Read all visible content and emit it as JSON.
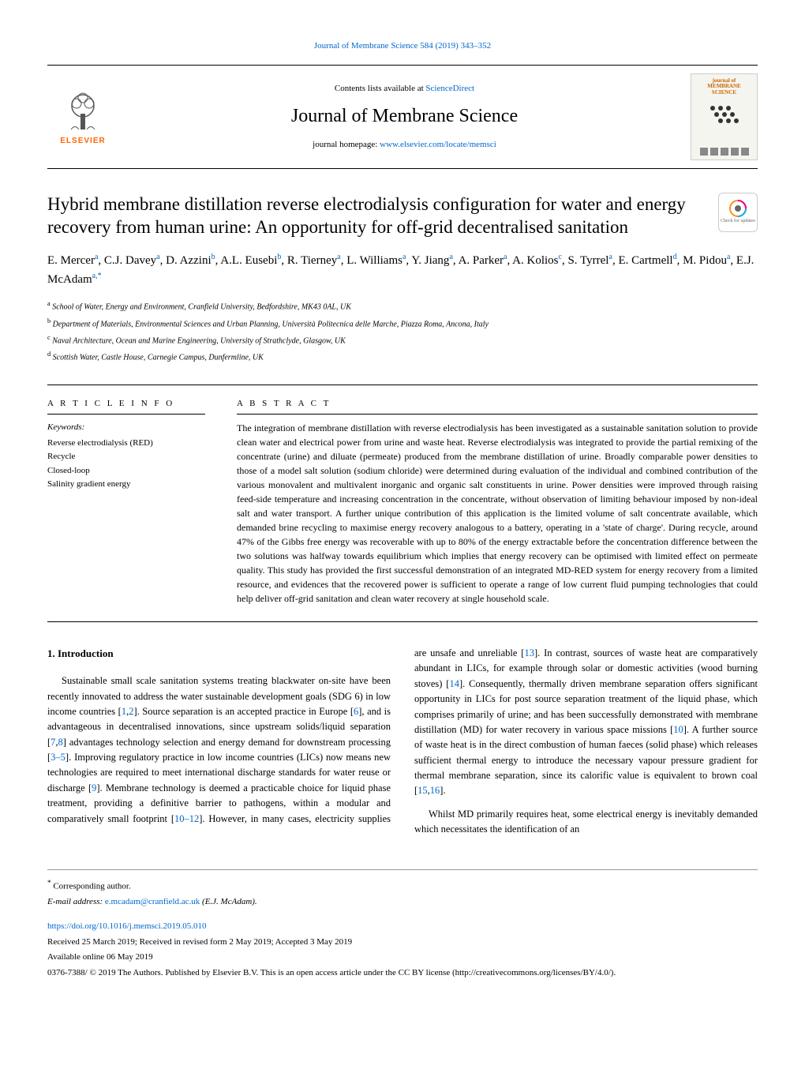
{
  "header": {
    "top_link_journal": "Journal of Membrane Science 584 (2019) 343–352",
    "contents_prefix": "Contents lists available at ",
    "contents_link": "ScienceDirect",
    "journal_name": "Journal of Membrane Science",
    "homepage_prefix": "journal homepage: ",
    "homepage_url": "www.elsevier.com/locate/memsci",
    "elsevier_label": "ELSEVIER",
    "cover_title_1": "journal of",
    "cover_title_2": "MEMBRANE",
    "cover_title_3": "SCIENCE",
    "check_updates": "Check for updates"
  },
  "article": {
    "title": "Hybrid membrane distillation reverse electrodialysis configuration for water and energy recovery from human urine: An opportunity for off-grid decentralised sanitation",
    "authors_html": "E. Mercer<sup>a</sup>, C.J. Davey<sup>a</sup>, D. Azzini<sup>b</sup>, A.L. Eusebi<sup>b</sup>, R. Tierney<sup>a</sup>, L. Williams<sup>a</sup>, Y. Jiang<sup>a</sup>, A. Parker<sup>a</sup>, A. Kolios<sup>c</sup>, S. Tyrrel<sup>a</sup>, E. Cartmell<sup>d</sup>, M. Pidou<sup>a</sup>, E.J. McAdam<sup>a,*</sup>",
    "affiliations": [
      {
        "label": "a",
        "text": "School of Water, Energy and Environment, Cranfield University, Bedfordshire, MK43 0AL, UK"
      },
      {
        "label": "b",
        "text": "Department of Materials, Environmental Sciences and Urban Planning, Università Politecnica delle Marche, Piazza Roma, Ancona, Italy"
      },
      {
        "label": "c",
        "text": "Naval Architecture, Ocean and Marine Engineering, University of Strathclyde, Glasgow, UK"
      },
      {
        "label": "d",
        "text": "Scottish Water, Castle House, Carnegie Campus, Dunfermline, UK"
      }
    ]
  },
  "info": {
    "heading": "A R T I C L E  I N F O",
    "keywords_label": "Keywords:",
    "keywords": [
      "Reverse electrodialysis (RED)",
      "Recycle",
      "Closed-loop",
      "Salinity gradient energy"
    ]
  },
  "abstract": {
    "heading": "A B S T R A C T",
    "text": "The integration of membrane distillation with reverse electrodialysis has been investigated as a sustainable sanitation solution to provide clean water and electrical power from urine and waste heat. Reverse electrodialysis was integrated to provide the partial remixing of the concentrate (urine) and diluate (permeate) produced from the membrane distillation of urine. Broadly comparable power densities to those of a model salt solution (sodium chloride) were determined during evaluation of the individual and combined contribution of the various monovalent and multivalent inorganic and organic salt constituents in urine. Power densities were improved through raising feed-side temperature and increasing concentration in the concentrate, without observation of limiting behaviour imposed by non-ideal salt and water transport. A further unique contribution of this application is the limited volume of salt concentrate available, which demanded brine recycling to maximise energy recovery analogous to a battery, operating in a 'state of charge'. During recycle, around 47% of the Gibbs free energy was recoverable with up to 80% of the energy extractable before the concentration difference between the two solutions was halfway towards equilibrium which implies that energy recovery can be optimised with limited effect on permeate quality. This study has provided the first successful demonstration of an integrated MD-RED system for energy recovery from a limited resource, and evidences that the recovered power is sufficient to operate a range of low current fluid pumping technologies that could help deliver off-grid sanitation and clean water recovery at single household scale."
  },
  "section1": {
    "heading": "1. Introduction",
    "para1_pre": "Sustainable small scale sanitation systems treating blackwater on-site have been recently innovated to address the water sustainable development goals (SDG 6) in low income countries [",
    "para1_ref1": "1",
    "para1_mid1": ",",
    "para1_ref2": "2",
    "para1_mid2": "]. Source separation is an accepted practice in Europe [",
    "para1_ref3": "6",
    "para1_mid3": "], and is advantageous in decentralised innovations, since upstream solids/liquid separation [",
    "para1_ref4": "7",
    "para1_mid4": ",",
    "para1_ref5": "8",
    "para1_mid5": "] advantages technology selection and energy demand for downstream processing [",
    "para1_ref6": "3–5",
    "para1_mid6": "]. Improving regulatory practice in low income countries (LICs) now means new technologies are required to meet international discharge standards for water reuse or discharge [",
    "para1_ref7": "9",
    "para1_mid7": "]. Membrane technology is deemed a practicable choice for liquid phase treatment, providing a definitive barrier to pathogens, within a modular and comparatively small footprint [",
    "para1_ref8": "10–12",
    "para1_mid8": "]. However, in many cases, electricity supplies are unsafe and unreliable [",
    "para1_ref9": "13",
    "para1_mid9": "]. In contrast, sources of waste heat are comparatively abundant in LICs, for example through solar or domestic activities (wood burning stoves) [",
    "para1_ref10": "14",
    "para1_mid10": "]. Consequently, thermally driven membrane separation offers significant opportunity in LICs for post source separation treatment of the liquid phase, which comprises primarily of urine; and has been successfully demonstrated with membrane distillation (MD) for water recovery in various space missions [",
    "para1_ref11": "10",
    "para1_mid11": "]. A further source of waste heat is in the direct combustion of human faeces (solid phase) which releases sufficient thermal energy to introduce the necessary vapour pressure gradient for thermal membrane separation, since its calorific value is equivalent to brown coal [",
    "para1_ref12": "15",
    "para1_mid12": ",",
    "para1_ref13": "16",
    "para1_post": "].",
    "para2": "Whilst MD primarily requires heat, some electrical energy is inevitably demanded which necessitates the identification of an"
  },
  "footer": {
    "corresponding_marker": "*",
    "corresponding_text": " Corresponding author.",
    "email_label": "E-mail address: ",
    "email": "e.mcadam@cranfield.ac.uk",
    "email_suffix": " (E.J. McAdam).",
    "doi": "https://doi.org/10.1016/j.memsci.2019.05.010",
    "received": "Received 25 March 2019; Received in revised form 2 May 2019; Accepted 3 May 2019",
    "available": "Available online 06 May 2019",
    "copyright": "0376-7388/ © 2019 The Authors. Published by Elsevier B.V. This is an open access article under the CC BY license (http://creativecommons.org/licenses/BY/4.0/)."
  },
  "colors": {
    "link": "#0066cc",
    "elsevier_orange": "#ff6600",
    "cover_orange": "#cc6600"
  }
}
